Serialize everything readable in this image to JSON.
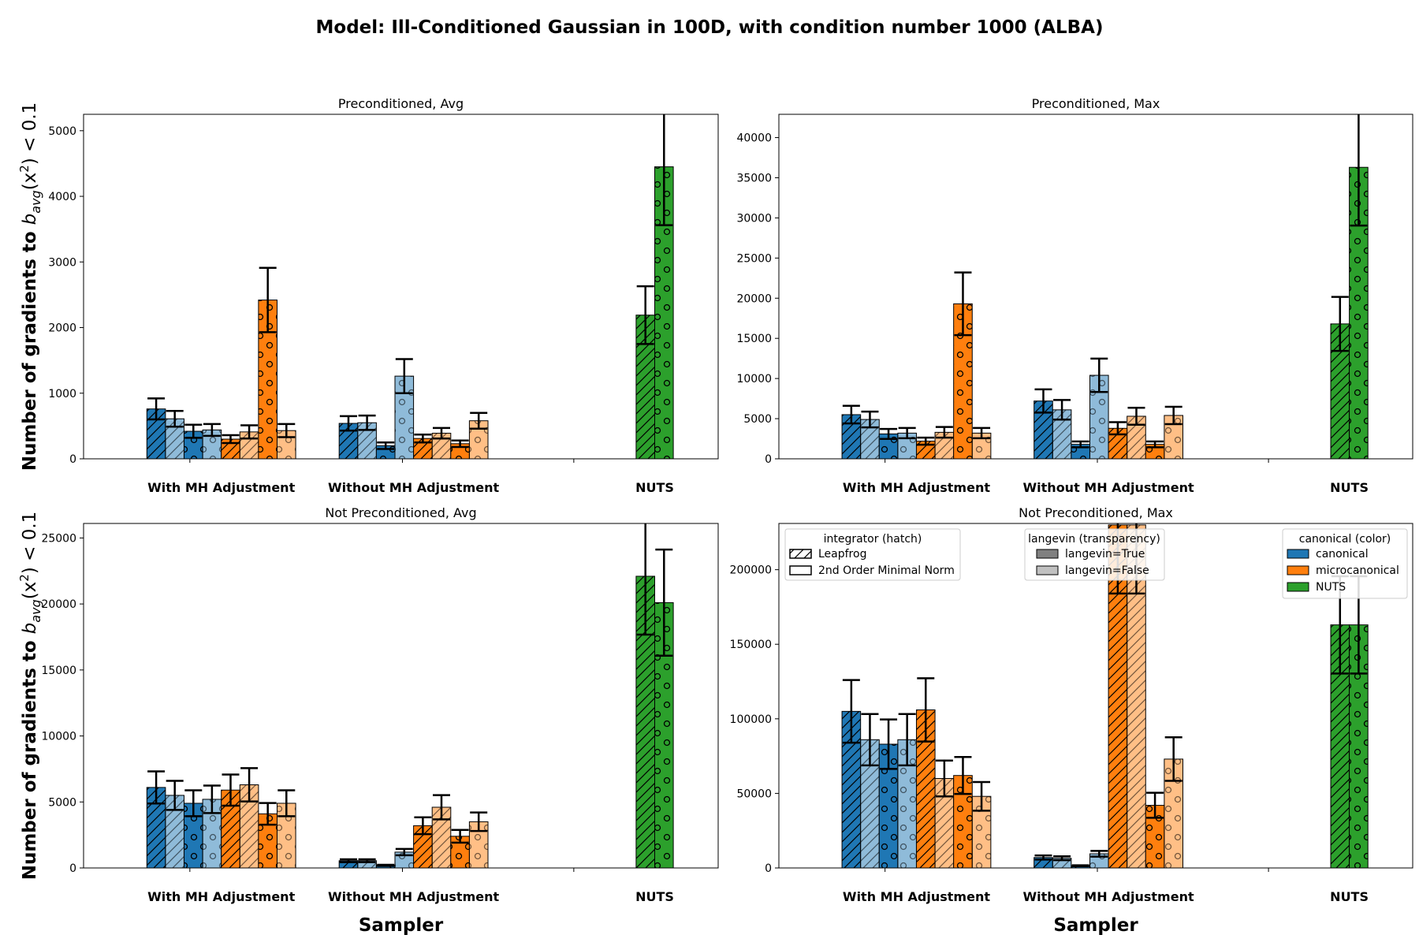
{
  "suptitle": "Model: Ill-Conditioned Gaussian in 100D, with condition number 1000 (ALBA)",
  "colors": {
    "canonical": "#1f77b4",
    "microcanonical": "#ff7f0e",
    "NUTS": "#2ca02c",
    "edge": "#000000"
  },
  "axis_labels": {
    "xlabel": "Sampler",
    "ylabel_prefix": "Number of gradients to ",
    "ylabel_math": "b",
    "ylabel_sub": "avg",
    "ylabel_suffix": "(x",
    "ylabel_sup": "2",
    "ylabel_end": ") < 0.1"
  },
  "legends": {
    "integrator": {
      "title": "integrator (hatch)",
      "items": [
        "Leapfrog",
        "2nd Order Minimal Norm"
      ]
    },
    "langevin": {
      "title": "langevin (transparency)",
      "items": [
        "langevin=True",
        "langevin=False"
      ]
    },
    "canonical": {
      "title": "canonical (color)",
      "items": [
        "canonical",
        "microcanonical",
        "NUTS"
      ]
    }
  },
  "chart_data": [
    {
      "type": "bar",
      "title": "Preconditioned, Avg",
      "categories": [
        "With MH Adjustment",
        "Without MH Adjustment",
        "NUTS"
      ],
      "ylim": [
        0,
        5250
      ],
      "yticks": [
        0,
        1000,
        2000,
        3000,
        4000,
        5000
      ],
      "xlabel": "",
      "ylabel": "Number of gradients to b_avg(x^2) < 0.1",
      "bars": [
        {
          "group": "With MH Adjustment",
          "color": "canonical",
          "integrator": "Leapfrog",
          "langevin": true,
          "value": 760,
          "err": 160
        },
        {
          "group": "With MH Adjustment",
          "color": "canonical",
          "integrator": "Leapfrog",
          "langevin": false,
          "value": 610,
          "err": 120
        },
        {
          "group": "With MH Adjustment",
          "color": "canonical",
          "integrator": "2nd Order Minimal Norm",
          "langevin": true,
          "value": 420,
          "err": 100
        },
        {
          "group": "With MH Adjustment",
          "color": "canonical",
          "integrator": "2nd Order Minimal Norm",
          "langevin": false,
          "value": 440,
          "err": 90
        },
        {
          "group": "With MH Adjustment",
          "color": "microcanonical",
          "integrator": "Leapfrog",
          "langevin": true,
          "value": 300,
          "err": 60
        },
        {
          "group": "With MH Adjustment",
          "color": "microcanonical",
          "integrator": "Leapfrog",
          "langevin": false,
          "value": 410,
          "err": 100
        },
        {
          "group": "With MH Adjustment",
          "color": "microcanonical",
          "integrator": "2nd Order Minimal Norm",
          "langevin": true,
          "value": 2420,
          "err": 490
        },
        {
          "group": "With MH Adjustment",
          "color": "microcanonical",
          "integrator": "2nd Order Minimal Norm",
          "langevin": false,
          "value": 430,
          "err": 100
        },
        {
          "group": "Without MH Adjustment",
          "color": "canonical",
          "integrator": "Leapfrog",
          "langevin": true,
          "value": 540,
          "err": 110
        },
        {
          "group": "Without MH Adjustment",
          "color": "canonical",
          "integrator": "Leapfrog",
          "langevin": false,
          "value": 550,
          "err": 110
        },
        {
          "group": "Without MH Adjustment",
          "color": "canonical",
          "integrator": "2nd Order Minimal Norm",
          "langevin": true,
          "value": 200,
          "err": 50
        },
        {
          "group": "Without MH Adjustment",
          "color": "canonical",
          "integrator": "2nd Order Minimal Norm",
          "langevin": false,
          "value": 1260,
          "err": 260
        },
        {
          "group": "Without MH Adjustment",
          "color": "microcanonical",
          "integrator": "Leapfrog",
          "langevin": true,
          "value": 310,
          "err": 60
        },
        {
          "group": "Without MH Adjustment",
          "color": "microcanonical",
          "integrator": "Leapfrog",
          "langevin": false,
          "value": 390,
          "err": 80
        },
        {
          "group": "Without MH Adjustment",
          "color": "microcanonical",
          "integrator": "2nd Order Minimal Norm",
          "langevin": true,
          "value": 230,
          "err": 50
        },
        {
          "group": "Without MH Adjustment",
          "color": "microcanonical",
          "integrator": "2nd Order Minimal Norm",
          "langevin": false,
          "value": 580,
          "err": 120
        },
        {
          "group": "NUTS",
          "color": "NUTS",
          "integrator": "Leapfrog",
          "langevin": true,
          "value": 2190,
          "err": 440
        },
        {
          "group": "NUTS",
          "color": "NUTS",
          "integrator": "2nd Order Minimal Norm",
          "langevin": true,
          "value": 4450,
          "err": 890
        }
      ]
    },
    {
      "type": "bar",
      "title": "Preconditioned, Max",
      "categories": [
        "With MH Adjustment",
        "Without MH Adjustment",
        "NUTS"
      ],
      "ylim": [
        0,
        42900
      ],
      "yticks": [
        0,
        5000,
        10000,
        15000,
        20000,
        25000,
        30000,
        35000,
        40000
      ],
      "xlabel": "",
      "ylabel": "",
      "bars": [
        {
          "group": "With MH Adjustment",
          "color": "canonical",
          "integrator": "Leapfrog",
          "langevin": true,
          "value": 5500,
          "err": 1100
        },
        {
          "group": "With MH Adjustment",
          "color": "canonical",
          "integrator": "Leapfrog",
          "langevin": false,
          "value": 4900,
          "err": 980
        },
        {
          "group": "With MH Adjustment",
          "color": "canonical",
          "integrator": "2nd Order Minimal Norm",
          "langevin": true,
          "value": 3100,
          "err": 620
        },
        {
          "group": "With MH Adjustment",
          "color": "canonical",
          "integrator": "2nd Order Minimal Norm",
          "langevin": false,
          "value": 3200,
          "err": 640
        },
        {
          "group": "With MH Adjustment",
          "color": "microcanonical",
          "integrator": "Leapfrog",
          "langevin": true,
          "value": 2200,
          "err": 440
        },
        {
          "group": "With MH Adjustment",
          "color": "microcanonical",
          "integrator": "Leapfrog",
          "langevin": false,
          "value": 3300,
          "err": 660
        },
        {
          "group": "With MH Adjustment",
          "color": "microcanonical",
          "integrator": "2nd Order Minimal Norm",
          "langevin": true,
          "value": 19300,
          "err": 3900
        },
        {
          "group": "With MH Adjustment",
          "color": "microcanonical",
          "integrator": "2nd Order Minimal Norm",
          "langevin": false,
          "value": 3200,
          "err": 640
        },
        {
          "group": "Without MH Adjustment",
          "color": "canonical",
          "integrator": "Leapfrog",
          "langevin": true,
          "value": 7200,
          "err": 1450
        },
        {
          "group": "Without MH Adjustment",
          "color": "canonical",
          "integrator": "Leapfrog",
          "langevin": false,
          "value": 6100,
          "err": 1220
        },
        {
          "group": "Without MH Adjustment",
          "color": "canonical",
          "integrator": "2nd Order Minimal Norm",
          "langevin": true,
          "value": 1800,
          "err": 360
        },
        {
          "group": "Without MH Adjustment",
          "color": "canonical",
          "integrator": "2nd Order Minimal Norm",
          "langevin": false,
          "value": 10400,
          "err": 2080
        },
        {
          "group": "Without MH Adjustment",
          "color": "microcanonical",
          "integrator": "Leapfrog",
          "langevin": true,
          "value": 3800,
          "err": 760
        },
        {
          "group": "Without MH Adjustment",
          "color": "microcanonical",
          "integrator": "Leapfrog",
          "langevin": false,
          "value": 5300,
          "err": 1060
        },
        {
          "group": "Without MH Adjustment",
          "color": "microcanonical",
          "integrator": "2nd Order Minimal Norm",
          "langevin": true,
          "value": 1800,
          "err": 360
        },
        {
          "group": "Without MH Adjustment",
          "color": "microcanonical",
          "integrator": "2nd Order Minimal Norm",
          "langevin": false,
          "value": 5400,
          "err": 1080
        },
        {
          "group": "NUTS",
          "color": "NUTS",
          "integrator": "Leapfrog",
          "langevin": true,
          "value": 16800,
          "err": 3360
        },
        {
          "group": "NUTS",
          "color": "NUTS",
          "integrator": "2nd Order Minimal Norm",
          "langevin": true,
          "value": 36300,
          "err": 7260
        }
      ]
    },
    {
      "type": "bar",
      "title": "Not Preconditioned, Avg",
      "categories": [
        "With MH Adjustment",
        "Without MH Adjustment",
        "NUTS"
      ],
      "ylim": [
        0,
        26100
      ],
      "yticks": [
        0,
        5000,
        10000,
        15000,
        20000,
        25000
      ],
      "xlabel": "Sampler",
      "ylabel": "Number of gradients to b_avg(x^2) < 0.1",
      "bars": [
        {
          "group": "With MH Adjustment",
          "color": "canonical",
          "integrator": "Leapfrog",
          "langevin": true,
          "value": 6100,
          "err": 1220
        },
        {
          "group": "With MH Adjustment",
          "color": "canonical",
          "integrator": "Leapfrog",
          "langevin": false,
          "value": 5500,
          "err": 1100
        },
        {
          "group": "With MH Adjustment",
          "color": "canonical",
          "integrator": "2nd Order Minimal Norm",
          "langevin": true,
          "value": 4900,
          "err": 980
        },
        {
          "group": "With MH Adjustment",
          "color": "canonical",
          "integrator": "2nd Order Minimal Norm",
          "langevin": false,
          "value": 5200,
          "err": 1040
        },
        {
          "group": "With MH Adjustment",
          "color": "microcanonical",
          "integrator": "Leapfrog",
          "langevin": true,
          "value": 5900,
          "err": 1180
        },
        {
          "group": "With MH Adjustment",
          "color": "microcanonical",
          "integrator": "Leapfrog",
          "langevin": false,
          "value": 6300,
          "err": 1260
        },
        {
          "group": "With MH Adjustment",
          "color": "microcanonical",
          "integrator": "2nd Order Minimal Norm",
          "langevin": true,
          "value": 4100,
          "err": 820
        },
        {
          "group": "With MH Adjustment",
          "color": "microcanonical",
          "integrator": "2nd Order Minimal Norm",
          "langevin": false,
          "value": 4900,
          "err": 980
        },
        {
          "group": "Without MH Adjustment",
          "color": "canonical",
          "integrator": "Leapfrog",
          "langevin": true,
          "value": 550,
          "err": 110
        },
        {
          "group": "Without MH Adjustment",
          "color": "canonical",
          "integrator": "Leapfrog",
          "langevin": false,
          "value": 550,
          "err": 110
        },
        {
          "group": "Without MH Adjustment",
          "color": "canonical",
          "integrator": "2nd Order Minimal Norm",
          "langevin": true,
          "value": 200,
          "err": 40
        },
        {
          "group": "Without MH Adjustment",
          "color": "canonical",
          "integrator": "2nd Order Minimal Norm",
          "langevin": false,
          "value": 1200,
          "err": 240
        },
        {
          "group": "Without MH Adjustment",
          "color": "microcanonical",
          "integrator": "Leapfrog",
          "langevin": true,
          "value": 3200,
          "err": 640
        },
        {
          "group": "Without MH Adjustment",
          "color": "microcanonical",
          "integrator": "Leapfrog",
          "langevin": false,
          "value": 4600,
          "err": 920
        },
        {
          "group": "Without MH Adjustment",
          "color": "microcanonical",
          "integrator": "2nd Order Minimal Norm",
          "langevin": true,
          "value": 2400,
          "err": 480
        },
        {
          "group": "Without MH Adjustment",
          "color": "microcanonical",
          "integrator": "2nd Order Minimal Norm",
          "langevin": false,
          "value": 3500,
          "err": 700
        },
        {
          "group": "NUTS",
          "color": "NUTS",
          "integrator": "Leapfrog",
          "langevin": true,
          "value": 22100,
          "err": 4420
        },
        {
          "group": "NUTS",
          "color": "NUTS",
          "integrator": "2nd Order Minimal Norm",
          "langevin": true,
          "value": 20100,
          "err": 4020
        }
      ]
    },
    {
      "type": "bar",
      "title": "Not Preconditioned, Max",
      "categories": [
        "With MH Adjustment",
        "Without MH Adjustment",
        "NUTS"
      ],
      "ylim": [
        0,
        231000
      ],
      "yticks": [
        0,
        50000,
        100000,
        150000,
        200000
      ],
      "xlabel": "Sampler",
      "ylabel": "",
      "bars": [
        {
          "group": "With MH Adjustment",
          "color": "canonical",
          "integrator": "Leapfrog",
          "langevin": true,
          "value": 105000,
          "err": 21000
        },
        {
          "group": "With MH Adjustment",
          "color": "canonical",
          "integrator": "Leapfrog",
          "langevin": false,
          "value": 86000,
          "err": 17200
        },
        {
          "group": "With MH Adjustment",
          "color": "canonical",
          "integrator": "2nd Order Minimal Norm",
          "langevin": true,
          "value": 83000,
          "err": 16600
        },
        {
          "group": "With MH Adjustment",
          "color": "canonical",
          "integrator": "2nd Order Minimal Norm",
          "langevin": false,
          "value": 86000,
          "err": 17200
        },
        {
          "group": "With MH Adjustment",
          "color": "microcanonical",
          "integrator": "Leapfrog",
          "langevin": true,
          "value": 106000,
          "err": 21200
        },
        {
          "group": "With MH Adjustment",
          "color": "microcanonical",
          "integrator": "Leapfrog",
          "langevin": false,
          "value": 60000,
          "err": 12000
        },
        {
          "group": "With MH Adjustment",
          "color": "microcanonical",
          "integrator": "2nd Order Minimal Norm",
          "langevin": true,
          "value": 62000,
          "err": 12400
        },
        {
          "group": "With MH Adjustment",
          "color": "microcanonical",
          "integrator": "2nd Order Minimal Norm",
          "langevin": false,
          "value": 48000,
          "err": 9600
        },
        {
          "group": "Without MH Adjustment",
          "color": "canonical",
          "integrator": "Leapfrog",
          "langevin": true,
          "value": 7000,
          "err": 1400
        },
        {
          "group": "Without MH Adjustment",
          "color": "canonical",
          "integrator": "Leapfrog",
          "langevin": false,
          "value": 6500,
          "err": 1300
        },
        {
          "group": "Without MH Adjustment",
          "color": "canonical",
          "integrator": "2nd Order Minimal Norm",
          "langevin": true,
          "value": 1500,
          "err": 300
        },
        {
          "group": "Without MH Adjustment",
          "color": "canonical",
          "integrator": "2nd Order Minimal Norm",
          "langevin": false,
          "value": 9500,
          "err": 1900
        },
        {
          "group": "Without MH Adjustment",
          "color": "microcanonical",
          "integrator": "Leapfrog",
          "langevin": true,
          "value": 230000,
          "err": 46000
        },
        {
          "group": "Without MH Adjustment",
          "color": "microcanonical",
          "integrator": "Leapfrog",
          "langevin": false,
          "value": 230000,
          "err": 46000
        },
        {
          "group": "Without MH Adjustment",
          "color": "microcanonical",
          "integrator": "2nd Order Minimal Norm",
          "langevin": true,
          "value": 42000,
          "err": 8400
        },
        {
          "group": "Without MH Adjustment",
          "color": "microcanonical",
          "integrator": "2nd Order Minimal Norm",
          "langevin": false,
          "value": 73000,
          "err": 14600
        },
        {
          "group": "NUTS",
          "color": "NUTS",
          "integrator": "Leapfrog",
          "langevin": true,
          "value": 163000,
          "err": 32600
        },
        {
          "group": "NUTS",
          "color": "NUTS",
          "integrator": "2nd Order Minimal Norm",
          "langevin": true,
          "value": 163000,
          "err": 32600
        }
      ]
    }
  ]
}
